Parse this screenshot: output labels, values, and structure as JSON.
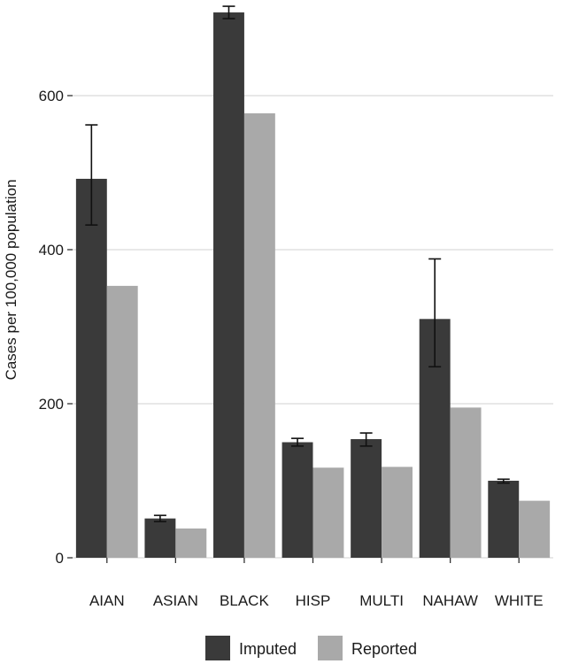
{
  "chart_data": {
    "type": "bar",
    "title": "",
    "xlabel": "",
    "ylabel": "Cases per 100,000 population",
    "ylim": [
      0,
      720
    ],
    "yticks": [
      0,
      200,
      400,
      600
    ],
    "grid": "horizontal",
    "legend_position": "bottom",
    "categories": [
      "AIAN",
      "ASIAN",
      "BLACK",
      "HISP",
      "MULTI",
      "NAHAW",
      "WHITE"
    ],
    "series": [
      {
        "name": "Imputed",
        "color": "#3a3a3a",
        "values": [
          492,
          51,
          708,
          150,
          154,
          310,
          100
        ],
        "error_low": [
          432,
          47,
          700,
          145,
          145,
          248,
          97
        ],
        "error_high": [
          562,
          55,
          716,
          155,
          162,
          388,
          102
        ]
      },
      {
        "name": "Reported",
        "color": "#a9a9a9",
        "values": [
          353,
          38,
          577,
          117,
          118,
          195,
          74
        ]
      }
    ]
  }
}
